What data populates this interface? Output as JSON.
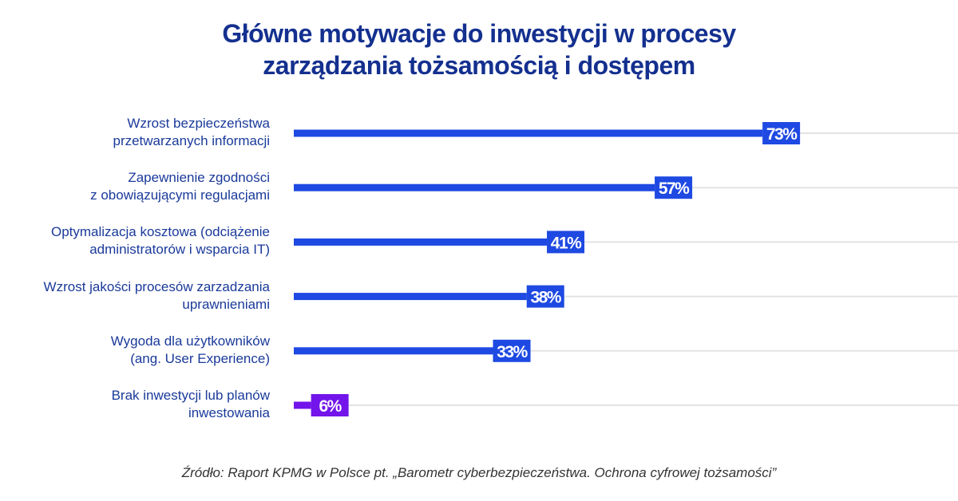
{
  "chart_data": {
    "type": "bar",
    "orientation": "horizontal",
    "title": "Główne motywacje do inwestycji w procesy zarządzania tożsamością i dostępem",
    "title_lines": [
      "Główne motywacje do inwestycji w procesy",
      "zarządzania tożsamością i dostępem"
    ],
    "categories": [
      [
        "Wzrost bezpieczeństwa",
        "przetwarzanych informacji"
      ],
      [
        "Zapewnienie zgodności",
        "z obowiązującymi regulacjami"
      ],
      [
        "Optymalizacja kosztowa (odciążenie",
        "administratorów i wsparcia IT)"
      ],
      [
        "Wzrost jakości procesów zarzadzania",
        "uprawnieniami"
      ],
      [
        "Wygoda dla użytkowników",
        "(ang. User Experience)"
      ],
      [
        "Brak inwestycji lub planów",
        "inwestowania"
      ]
    ],
    "values": [
      73,
      57,
      41,
      38,
      33,
      6
    ],
    "value_labels": [
      "73%",
      "57%",
      "41%",
      "38%",
      "33%",
      "6%"
    ],
    "unit": "%",
    "xlim": [
      0,
      100
    ],
    "grid": false,
    "colors": [
      "#1e49e2",
      "#1e49e2",
      "#1e49e2",
      "#1e49e2",
      "#1e49e2",
      "#7214ea"
    ],
    "track_color": "#e3e3e3",
    "source": "Źródło: Raport KPMG w Polsce pt. „Barometr cyberbezpieczeństwa. Ochrona cyfrowej tożsamości”"
  }
}
